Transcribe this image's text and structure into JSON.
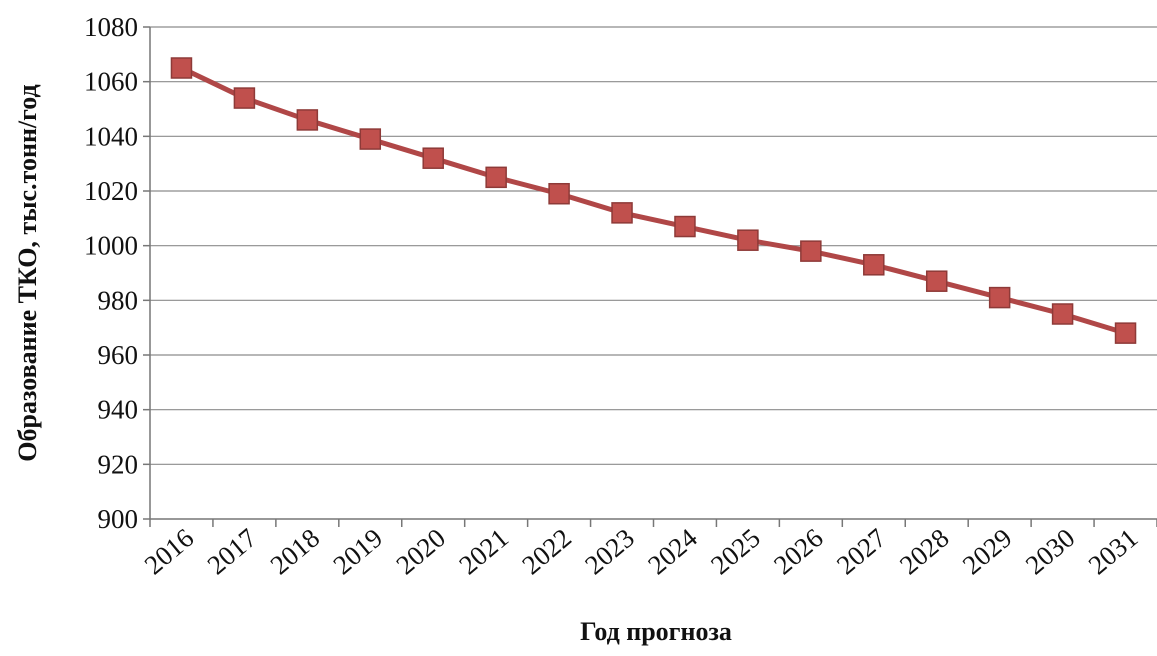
{
  "chart_data": {
    "type": "line",
    "title": "",
    "xlabel": "Год прогноза",
    "ylabel": "Образование ТКО, тыс.тонн/год",
    "categories": [
      "2016",
      "2017",
      "2018",
      "2019",
      "2020",
      "2021",
      "2022",
      "2023",
      "2024",
      "2025",
      "2026",
      "2027",
      "2028",
      "2029",
      "2030",
      "2031"
    ],
    "y_ticks": [
      "900",
      "920",
      "940",
      "960",
      "980",
      "1000",
      "1020",
      "1040",
      "1060",
      "1080"
    ],
    "series": [
      {
        "values": [
          1065,
          1054,
          1046,
          1039,
          1032,
          1025,
          1019,
          1012,
          1007,
          1002,
          998,
          993,
          987,
          981,
          975,
          968
        ]
      }
    ],
    "ylim": [
      900,
      1080
    ],
    "grid": true,
    "legend": "none",
    "colors": {
      "line": "#b04747",
      "marker": "#c0504d",
      "marker_edge": "#8e3a38"
    }
  }
}
